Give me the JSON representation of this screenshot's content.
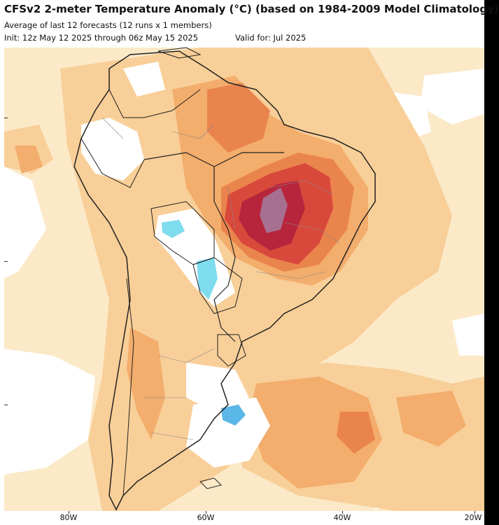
{
  "header": {
    "title": "CFSv2 2-meter Temperature Anomaly (°C) (based on 1984-2009 Model Climatology)",
    "subtitle": "Average of last 12 forecasts (12 runs x 1 members)",
    "init": "Init: 12z May 12 2025 through 06z May 15 2025",
    "valid": "Valid for: Jul 2025"
  },
  "axis": {
    "x_ticks": [
      "80W",
      "60W",
      "40W",
      "20W"
    ]
  },
  "colors": {
    "ocean_base": "#fbe9c8",
    "light_orange": "#f8cf98",
    "orange": "#f3ad6c",
    "dark_orange": "#ea844d",
    "red": "#d9493b",
    "dark_red": "#b7253c",
    "purple": "#a77090",
    "white": "#ffffff",
    "cyan": "#7fdcef",
    "blue": "#5ab7e8",
    "borders": "#222222"
  }
}
